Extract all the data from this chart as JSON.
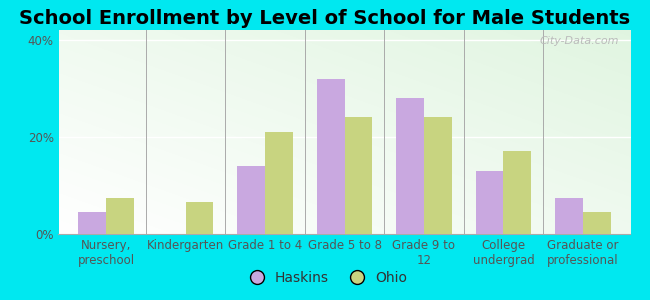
{
  "title": "School Enrollment by Level of School for Male Students",
  "categories": [
    "Nursery,\npreschool",
    "Kindergarten",
    "Grade 1 to 4",
    "Grade 5 to 8",
    "Grade 9 to\n12",
    "College\nundergrad",
    "Graduate or\nprofessional"
  ],
  "haskins": [
    4.5,
    0,
    14,
    32,
    28,
    13,
    7.5
  ],
  "ohio": [
    7.5,
    6.5,
    21,
    24,
    24,
    17,
    4.5
  ],
  "haskins_color": "#c9a8e0",
  "ohio_color": "#c8d480",
  "bar_width": 0.35,
  "ylim": [
    0,
    42
  ],
  "yticks": [
    0,
    20,
    40
  ],
  "ytick_labels": [
    "0%",
    "20%",
    "40%"
  ],
  "background_color": "#00e8f0",
  "title_fontsize": 14,
  "tick_fontsize": 8.5,
  "legend_labels": [
    "Haskins",
    "Ohio"
  ],
  "watermark": "City-Data.com"
}
